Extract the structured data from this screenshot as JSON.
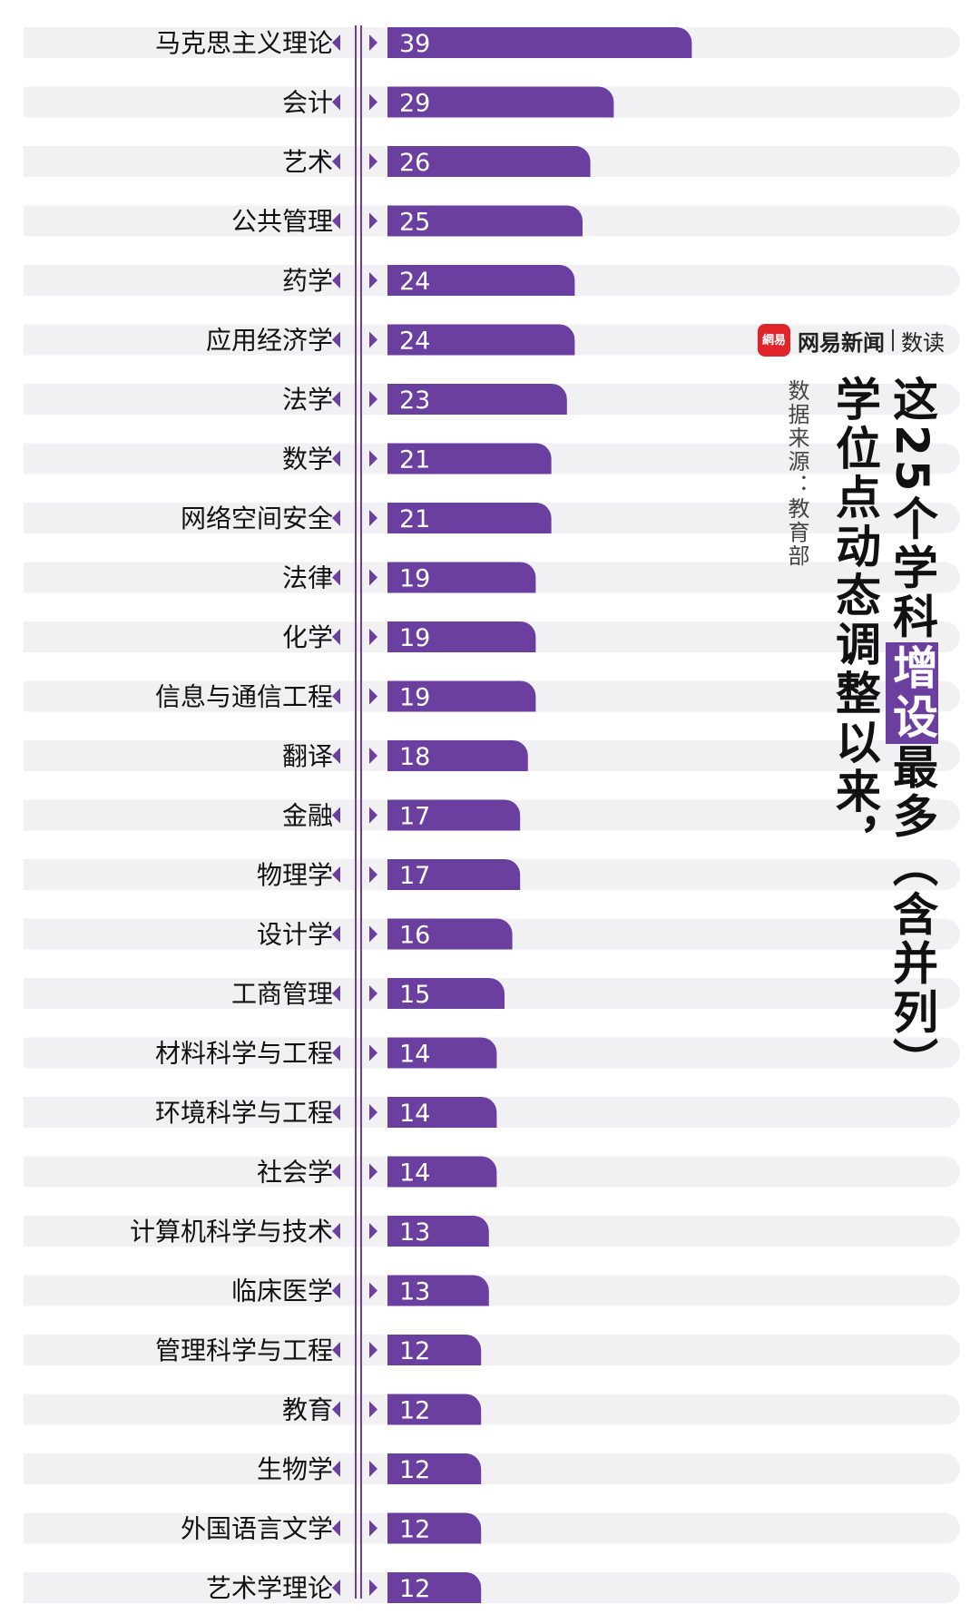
{
  "brand": {
    "badge_text": "網易",
    "name": "网易新闻",
    "sub": "数读",
    "badge_color": "#e0262b"
  },
  "title": {
    "line1_before": "这25个学科",
    "line1_highlight": "增设",
    "line1_after": "最多（含并列）",
    "line2": "学位点动态调整以来，"
  },
  "source": "数据来源：教育部",
  "colors": {
    "bar": "#6b3fa0",
    "track": "#f1f1f3",
    "divider": "#6b3fa0",
    "arrow": "#6b3fa0"
  },
  "chart_data": {
    "type": "bar",
    "orientation": "horizontal",
    "categories": [
      "马克思主义理论",
      "会计",
      "艺术",
      "公共管理",
      "药学",
      "应用经济学",
      "法学",
      "数学",
      "网络空间安全",
      "法律",
      "化学",
      "信息与通信工程",
      "翻译",
      "金融",
      "物理学",
      "设计学",
      "工商管理",
      "材料科学与工程",
      "环境科学与工程",
      "社会学",
      "计算机科学与技术",
      "临床医学",
      "管理科学与工程",
      "教育",
      "生物学",
      "外国语言文学",
      "艺术学理论"
    ],
    "values": [
      39,
      29,
      26,
      25,
      24,
      24,
      23,
      21,
      21,
      19,
      19,
      19,
      18,
      17,
      17,
      16,
      15,
      14,
      14,
      14,
      13,
      13,
      12,
      12,
      12,
      12,
      12
    ]
  }
}
